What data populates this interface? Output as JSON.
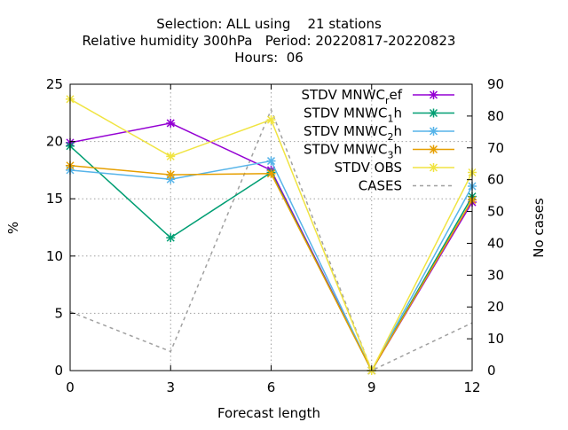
{
  "chart_data": {
    "type": "line",
    "title_lines": [
      "Selection: ALL using    21 stations",
      "Relative humidity 300hPa   Period: 20220817-20220823",
      "Hours:  06"
    ],
    "xlabel": "Forecast length",
    "ylabel": "%",
    "y2label": "No cases",
    "x": [
      0,
      3,
      6,
      9,
      12
    ],
    "xlim": [
      0,
      12
    ],
    "ylim": [
      0,
      25
    ],
    "y2lim": [
      0,
      90
    ],
    "xticks": [
      "0",
      "3",
      "6",
      "9",
      "12"
    ],
    "yticks": [
      "0",
      "5",
      "10",
      "15",
      "20",
      "25"
    ],
    "y2ticks": [
      "0",
      "10",
      "20",
      "30",
      "40",
      "50",
      "60",
      "70",
      "80",
      "90"
    ],
    "grid": true,
    "legend_position": "top-right",
    "series": [
      {
        "name": "STDV MNWC_ref",
        "legend_parts": [
          [
            "STDV MNWC",
            ""
          ],
          [
            "r",
            "sub"
          ],
          [
            "ef",
            ""
          ]
        ],
        "color": "#9400d3",
        "marker": "x-star",
        "axis": "y1",
        "values": [
          19.9,
          21.6,
          17.5,
          0.0,
          14.7
        ]
      },
      {
        "name": "STDV MNWC_1h",
        "legend_parts": [
          [
            "STDV MNWC",
            ""
          ],
          [
            "1",
            "sub"
          ],
          [
            "h",
            ""
          ]
        ],
        "color": "#009e73",
        "marker": "x-star",
        "axis": "y1",
        "values": [
          19.6,
          11.6,
          17.3,
          0.0,
          15.2
        ]
      },
      {
        "name": "STDV MNWC_2h",
        "legend_parts": [
          [
            "STDV MNWC",
            ""
          ],
          [
            "2",
            "sub"
          ],
          [
            "h",
            ""
          ]
        ],
        "color": "#56b4e9",
        "marker": "x-star",
        "axis": "y1",
        "values": [
          17.5,
          16.7,
          18.3,
          0.0,
          16.1
        ]
      },
      {
        "name": "STDV MNWC_3h",
        "legend_parts": [
          [
            "STDV MNWC",
            ""
          ],
          [
            "3",
            "sub"
          ],
          [
            "h",
            ""
          ]
        ],
        "color": "#e69f00",
        "marker": "x-star",
        "axis": "y1",
        "values": [
          17.9,
          17.1,
          17.2,
          0.0,
          14.9
        ]
      },
      {
        "name": "STDV OBS",
        "legend_parts": [
          [
            "STDV OBS",
            ""
          ]
        ],
        "color": "#f0e442",
        "marker": "x-star",
        "axis": "y1",
        "values": [
          23.7,
          18.7,
          21.9,
          0.0,
          17.3
        ]
      },
      {
        "name": "CASES",
        "legend_parts": [
          [
            "CASES",
            ""
          ]
        ],
        "color": "#a0a0a0",
        "marker": "none",
        "dashed": true,
        "axis": "y2",
        "values": [
          18.5,
          6,
          82,
          0,
          15
        ]
      }
    ]
  }
}
